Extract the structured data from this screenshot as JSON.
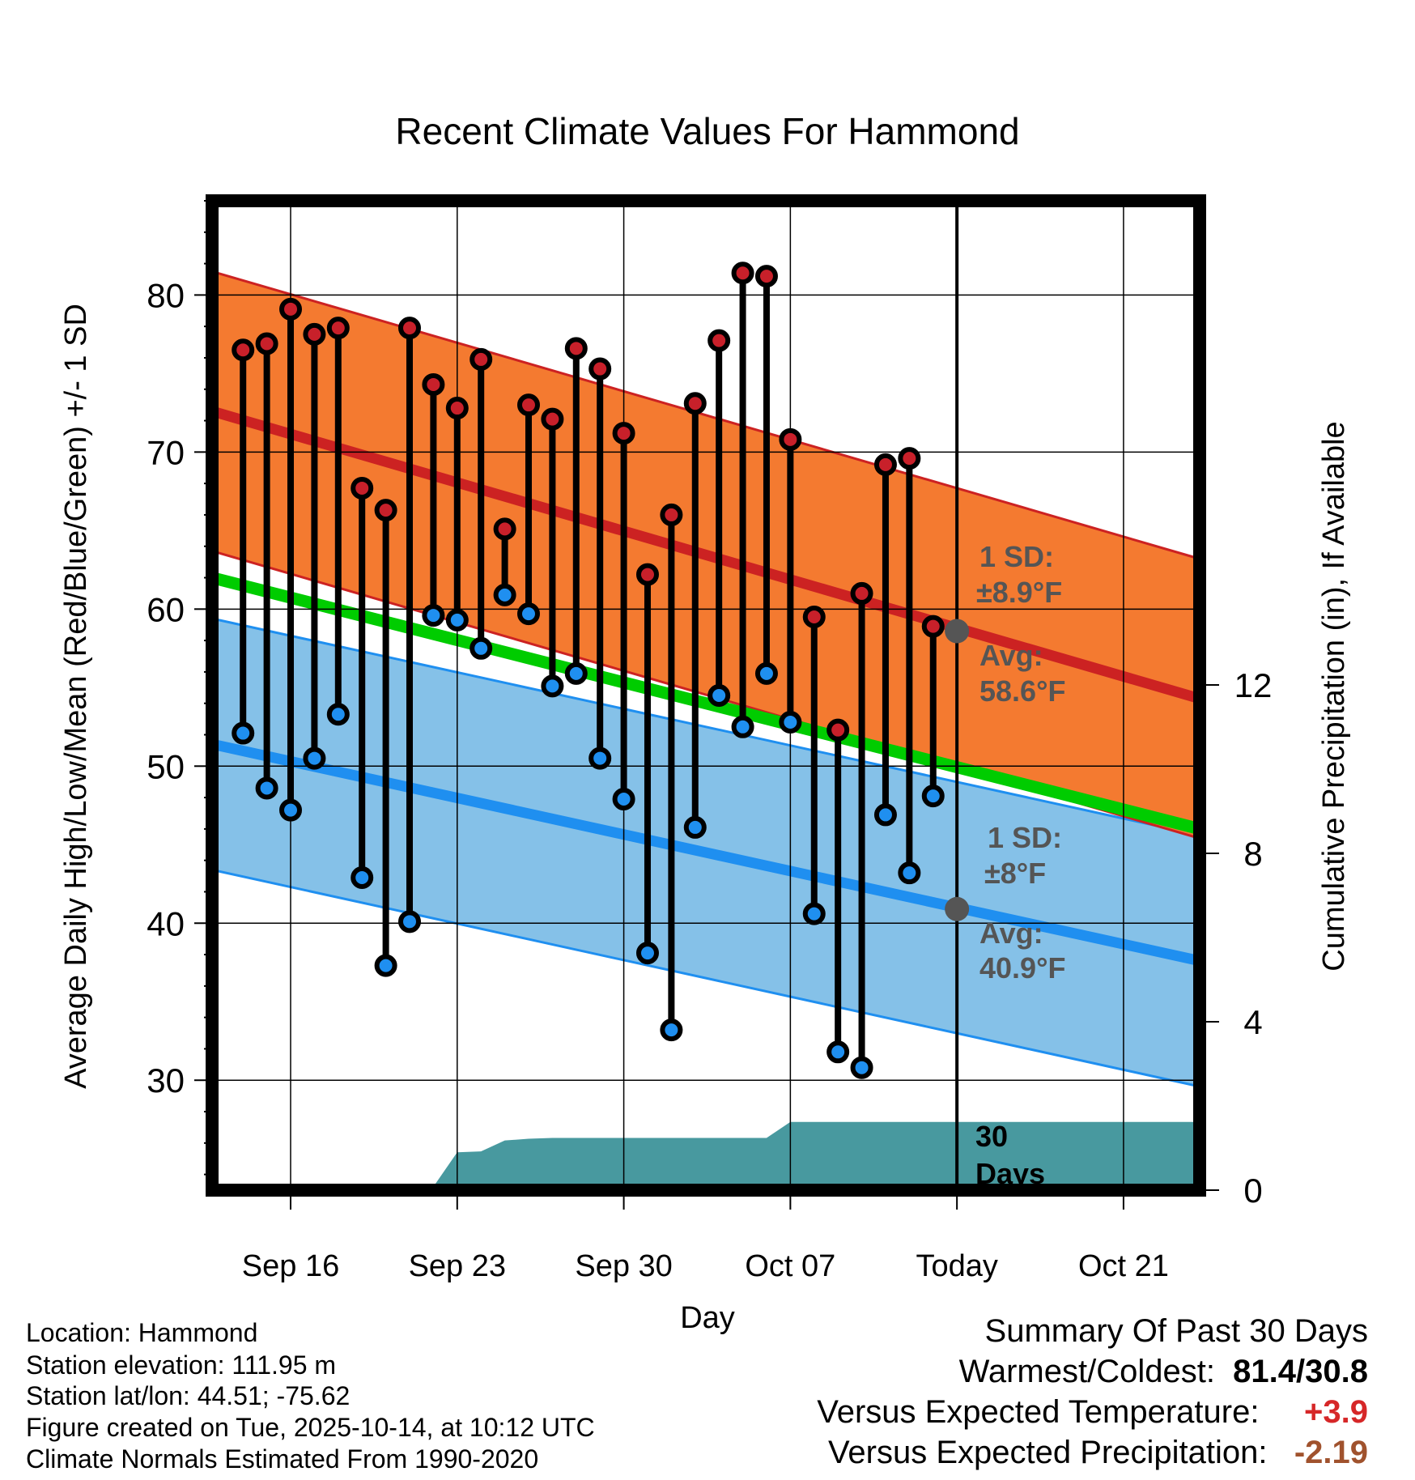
{
  "chart_data": {
    "type": "line",
    "title": "Recent Climate Values For Hammond",
    "xlabel": "Day",
    "ylabel": "Average Daily High/Low/Mean (Red/Blue/Green) +/- 1 SD",
    "y2label": "Cumulative Precipitation (in), If Available",
    "ylim": [
      23,
      86
    ],
    "y2lim": [
      0,
      23.5
    ],
    "yticks": [
      30,
      40,
      50,
      60,
      70,
      80
    ],
    "y2ticks": [
      0,
      4,
      8,
      12
    ],
    "xlim": [
      -3.3,
      38.2
    ],
    "xticks": [
      {
        "label": "Sep 16",
        "day": 0
      },
      {
        "label": "Sep 23",
        "day": 7
      },
      {
        "label": "Sep 30",
        "day": 14
      },
      {
        "label": "Oct 07",
        "day": 21
      },
      {
        "label": "Today",
        "day": 28
      },
      {
        "label": "Oct 21",
        "day": 35
      }
    ],
    "days": [
      -2,
      -1,
      0,
      1,
      2,
      3,
      4,
      5,
      6,
      7,
      8,
      9,
      10,
      11,
      12,
      13,
      14,
      15,
      16,
      17,
      18,
      19,
      20,
      21,
      22,
      23,
      24,
      25,
      26,
      27
    ],
    "highs": [
      76.5,
      76.9,
      79.1,
      77.5,
      77.9,
      67.7,
      66.3,
      77.9,
      74.3,
      72.8,
      75.9,
      65.1,
      73.0,
      72.1,
      76.6,
      75.3,
      71.2,
      62.2,
      66.0,
      73.1,
      77.1,
      81.4,
      81.2,
      70.8,
      59.5,
      52.3,
      61.0,
      69.2,
      69.6,
      58.9
    ],
    "lows": [
      52.1,
      48.6,
      47.2,
      50.5,
      53.3,
      42.9,
      37.3,
      40.1,
      59.6,
      59.3,
      57.5,
      60.9,
      59.7,
      55.1,
      55.9,
      50.5,
      47.9,
      38.1,
      33.2,
      46.1,
      54.5,
      52.5,
      55.9,
      52.8,
      40.6,
      31.8,
      30.8,
      46.9,
      43.2,
      48.1
    ],
    "normal_high": {
      "start": 72.6,
      "end": 54.3,
      "sd": 8.9
    },
    "normal_low": {
      "start": 51.4,
      "end": 37.6,
      "sd": 8.0
    },
    "normal_mean": {
      "start": 62.0,
      "end": 46.0
    },
    "precip_cumulative": [
      {
        "day": -3.3,
        "value": 0
      },
      {
        "day": 5.9,
        "value": 0
      },
      {
        "day": 7.0,
        "value": 0.9
      },
      {
        "day": 8.0,
        "value": 0.92
      },
      {
        "day": 9.0,
        "value": 1.18
      },
      {
        "day": 10.0,
        "value": 1.22
      },
      {
        "day": 11.0,
        "value": 1.24
      },
      {
        "day": 19.0,
        "value": 1.24
      },
      {
        "day": 20.0,
        "value": 1.24
      },
      {
        "day": 21.0,
        "value": 1.62
      },
      {
        "day": 38.2,
        "value": 1.62
      }
    ],
    "today_day": 28,
    "annotations": {
      "high_sd_line1": "1 SD:",
      "high_sd_line2": "±8.9°F",
      "high_avg_line1": "Avg:",
      "high_avg_line2": "58.6°F",
      "low_sd_line1": "1 SD:",
      "low_sd_line2": "±8°F",
      "low_avg_line1": "Avg:",
      "low_avg_line2": "40.9°F",
      "today_high_avg": 58.6,
      "today_low_avg": 40.9,
      "window_line1": "30",
      "window_line2": "Days"
    }
  },
  "colors": {
    "high_band": "#f47a30",
    "high_line": "#cc2222",
    "low_band": "#85c1e8",
    "low_line": "#1f8ff0",
    "mean_line": "#00cc00",
    "precip": "#48999f",
    "high_dot": "#c8202a",
    "low_dot": "#1f8ff0",
    "annotation": "#555555",
    "positive": "#d62728",
    "negative": "#a0522d"
  },
  "footer": {
    "location": "Location: Hammond",
    "elevation": "Station elevation: 111.95 m",
    "latlon": "Station lat/lon: 44.51; -75.62",
    "created": "Figure created on Tue, 2025-10-14, at 10:12 UTC",
    "normals": "Climate Normals Estimated From 1990-2020"
  },
  "summary": {
    "title": "Summary Of Past 30 Days",
    "warm_cold_label": "Warmest/Coldest:",
    "warm_cold_value": "81.4/30.8",
    "temp_label": "Versus Expected Temperature:",
    "temp_value": "+3.9",
    "precip_label": "Versus Expected Precipitation:",
    "precip_value": "-2.19"
  }
}
